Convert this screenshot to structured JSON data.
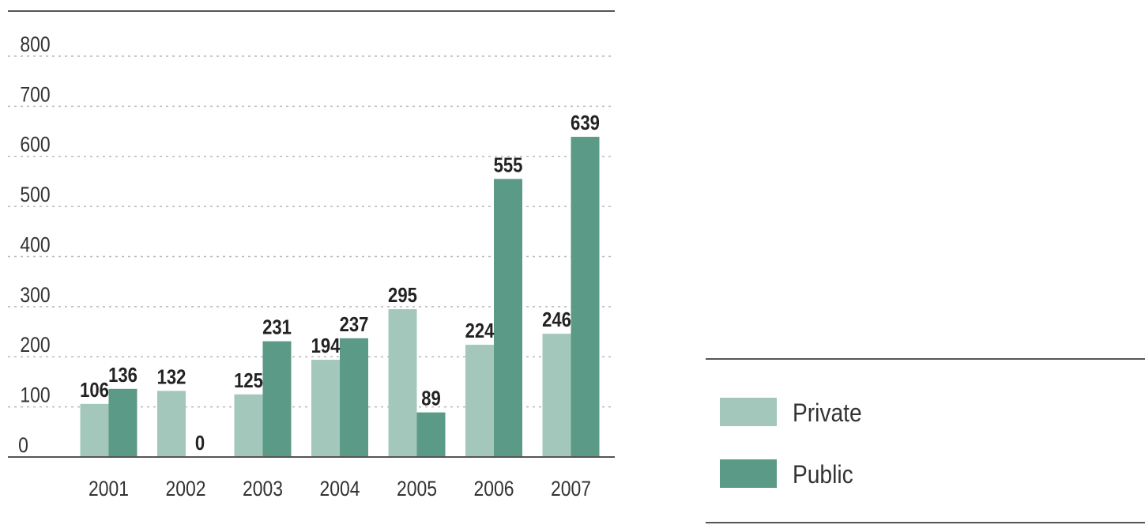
{
  "chart_data": {
    "type": "bar",
    "categories": [
      "2001",
      "2002",
      "2003",
      "2004",
      "2005",
      "2006",
      "2007"
    ],
    "series": [
      {
        "name": "Private",
        "values": [
          106,
          132,
          125,
          194,
          295,
          224,
          246
        ],
        "color": "#a3c8bb"
      },
      {
        "name": "Public",
        "values": [
          136,
          0,
          231,
          237,
          89,
          555,
          639
        ],
        "color": "#5b9a87"
      }
    ],
    "data_labels": {
      "Private": [
        "106",
        "132",
        "125",
        "194",
        "295",
        "224",
        "246"
      ],
      "Public": [
        "136",
        "0",
        "231",
        "237",
        "89",
        "555",
        "639"
      ]
    },
    "y_ticks": [
      "0",
      "100",
      "200",
      "300",
      "400",
      "500",
      "600",
      "700",
      "800"
    ],
    "ylim": [
      0,
      800
    ],
    "grid": true,
    "legend_position": "right",
    "title": "",
    "xlabel": "",
    "ylabel": ""
  }
}
